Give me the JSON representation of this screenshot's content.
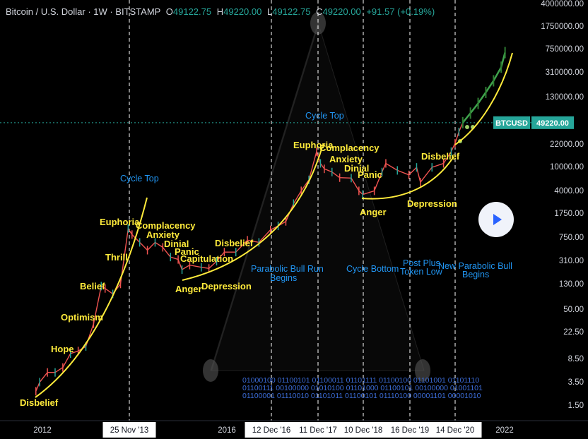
{
  "header": {
    "symbol": "Bitcoin / U.S. Dollar · 1W · BITSTAMP",
    "o_label": "O",
    "o_value": "49122.75",
    "h_label": "H",
    "h_value": "49220.00",
    "l_label": "L",
    "l_value": "49122.75",
    "c_label": "C",
    "c_value": "49220.00",
    "change": "+91.57 (+0.19%)"
  },
  "price_badge": {
    "ticker": "BTCUSD",
    "price": "49220.00"
  },
  "colors": {
    "yellow": "#ffeb3b",
    "blue": "#2196f3",
    "up": "#26a69a",
    "down": "#ef5350",
    "green_dots": "#4caf50"
  },
  "icons": {
    "play": "play-icon"
  },
  "chart_data": {
    "type": "line",
    "log_scale": true,
    "y_ticks": [
      "4000000.00",
      "1750000.00",
      "750000.00",
      "310000.00",
      "130000.00",
      "22000.00",
      "10000.00",
      "4000.00",
      "1750.00",
      "750.00",
      "310.00",
      "130.00",
      "50.00",
      "22.50",
      "8.50",
      "3.50",
      "1.50"
    ],
    "x_ticks": [
      "2012",
      "25 Nov '13",
      "2016",
      "12 Dec '16",
      "11 Dec '17",
      "10 Dec '18",
      "16 Dec '19",
      "14 Dec '20",
      "2022"
    ],
    "highlighted_x_ticks": [
      "25 Nov '13",
      "12 Dec '16",
      "11 Dec '17",
      "10 Dec '18",
      "16 Dec '19",
      "14 Dec '20"
    ],
    "series": [
      {
        "values": [
          [
            "2011-11",
            2.5
          ],
          [
            "2011-12",
            3.5
          ],
          [
            "2012-02",
            5
          ],
          [
            "2012-04",
            5
          ],
          [
            "2012-06",
            6
          ],
          [
            "2012-08",
            10
          ],
          [
            "2012-10",
            11
          ],
          [
            "2012-12",
            13
          ],
          [
            "2013-02",
            30
          ],
          [
            "2013-04",
            120
          ],
          [
            "2013-05",
            110
          ],
          [
            "2013-07",
            90
          ],
          [
            "2013-09",
            130
          ],
          [
            "2013-11",
            1000
          ],
          [
            "2013-12",
            800
          ],
          [
            "2014-02",
            600
          ],
          [
            "2014-04",
            450
          ],
          [
            "2014-06",
            600
          ],
          [
            "2014-08",
            500
          ],
          [
            "2014-10",
            350
          ],
          [
            "2014-12",
            320
          ],
          [
            "2015-01",
            220
          ],
          [
            "2015-03",
            260
          ],
          [
            "2015-06",
            240
          ],
          [
            "2015-08",
            230
          ],
          [
            "2015-10",
            300
          ],
          [
            "2015-12",
            420
          ],
          [
            "2016-03",
            420
          ],
          [
            "2016-06",
            650
          ],
          [
            "2016-09",
            600
          ],
          [
            "2016-12",
            950
          ],
          [
            "2017-02",
            1100
          ],
          [
            "2017-04",
            1300
          ],
          [
            "2017-06",
            2500
          ],
          [
            "2017-08",
            4000
          ],
          [
            "2017-10",
            6000
          ],
          [
            "2017-12",
            17000
          ],
          [
            "2018-01",
            11000
          ],
          [
            "2018-02",
            9000
          ],
          [
            "2018-04",
            8000
          ],
          [
            "2018-06",
            6500
          ],
          [
            "2018-09",
            6400
          ],
          [
            "2018-11",
            4000
          ],
          [
            "2018-12",
            3500
          ],
          [
            "2019-03",
            4000
          ],
          [
            "2019-05",
            8000
          ],
          [
            "2019-06",
            11000
          ],
          [
            "2019-09",
            8500
          ],
          [
            "2019-12",
            7200
          ],
          [
            "2020-02",
            9500
          ],
          [
            "2020-03",
            5500
          ],
          [
            "2020-06",
            9500
          ],
          [
            "2020-09",
            11000
          ],
          [
            "2020-11",
            17000
          ],
          [
            "2020-12",
            23000
          ],
          [
            "2021-01",
            35000
          ],
          [
            "2021-02",
            49220
          ]
        ]
      },
      {
        "values": [
          [
            "2021-02",
            49220
          ],
          [
            "2021-04",
            70000
          ],
          [
            "2021-06",
            100000
          ],
          [
            "2021-08",
            150000
          ],
          [
            "2021-10",
            230000
          ],
          [
            "2021-12",
            380000
          ],
          [
            "2022-01",
            650000
          ]
        ]
      }
    ]
  },
  "annotations_yellow": [
    "Disbelief",
    "Hope",
    "Optimism",
    "Belief",
    "Thrill",
    "Euphoria",
    "Complacency",
    "Anxiety",
    "Dinial",
    "Panic",
    "Capitulation",
    "Anger",
    "Depression",
    "Disbelief",
    "Euphoria",
    "Complacency",
    "Anxiety",
    "Dinial",
    "Panic",
    "Anger",
    "Depression",
    "Disbelief"
  ],
  "annotations_blue": {
    "cycle_top_1": "Cycle Top",
    "cycle_top_2": "Cycle Top",
    "parabolic_1": "Parabolic Bull Run",
    "parabolic_2": "Begins",
    "cycle_bottom": "Cycle Bottom",
    "post_plus_1": "Post Plus",
    "post_plus_2": "Token Low",
    "new_parabolic_1": "New Parabolic Bull",
    "new_parabolic_2": "Begins"
  },
  "binary_text": [
    "01000100 01100101 01100011 01101111 01100100 01101001 01101110",
    "01100111 00100000 01010100 01101000 01100101 00100000 01001101",
    "01100001 01110010 01101011 01100101 01110100 00001101 00001010"
  ]
}
